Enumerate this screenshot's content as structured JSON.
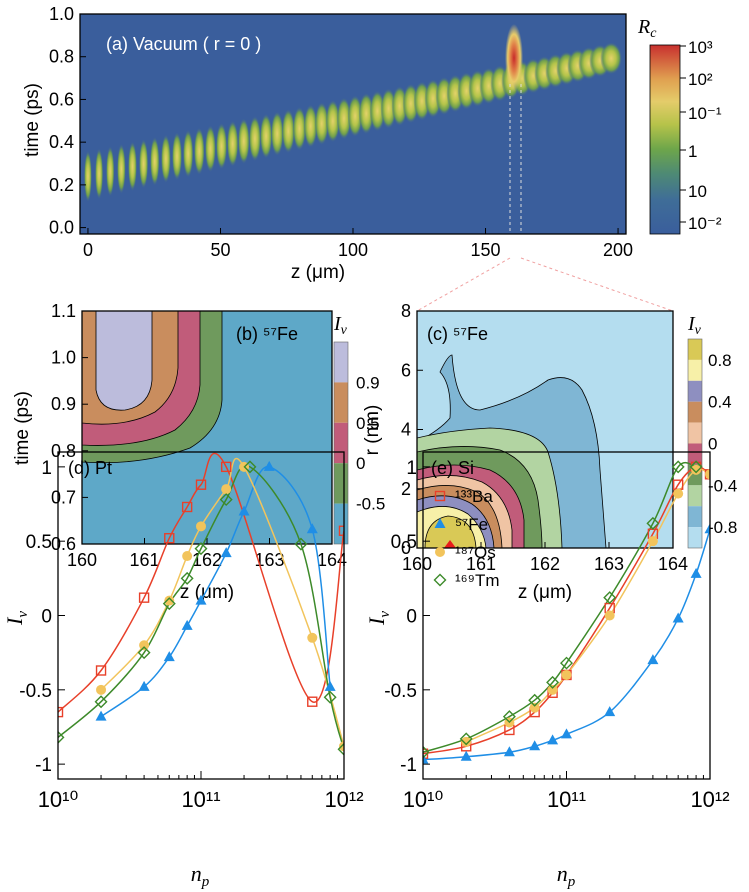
{
  "chart_data": [
    {
      "id": "a",
      "type": "heatmap",
      "annotation": "(a) Vacuum ( r = 0 )",
      "xlabel": "z (μm)",
      "ylabel": "time (ps)",
      "xlim": [
        -3,
        203
      ],
      "ylim": [
        -0.03,
        1.0
      ],
      "xticks": [
        0,
        50,
        100,
        150,
        200
      ],
      "yticks": [
        0.0,
        0.2,
        0.4,
        0.6,
        0.8,
        1.0
      ],
      "ytick_labels": [
        "0.0",
        "0.2",
        "0.4",
        "0.6",
        "0.8",
        "1.0"
      ],
      "colorbar_title": "R_c",
      "colorbar_labels": [
        "10³",
        "10²",
        "10⁻¹",
        "1",
        "10",
        "10⁻²"
      ],
      "peak": {
        "z": 160,
        "time": 0.8
      },
      "dashed_lines_z": [
        160,
        164
      ],
      "colors": [
        "#3a5e9c",
        "#3a5fa0",
        "#4c7f8c",
        "#5e9a4c",
        "#9ab640",
        "#d8c84c",
        "#e8d270",
        "#d94a3a"
      ]
    },
    {
      "id": "b",
      "type": "contour",
      "annotation": "(b) ⁵⁷Fe",
      "xlabel": "z (μm)",
      "ylabel": "time (ps)",
      "xlim": [
        160,
        164
      ],
      "ylim": [
        0.6,
        1.1
      ],
      "xticks": [
        160,
        161,
        162,
        163,
        164
      ],
      "yticks": [
        0.6,
        0.7,
        0.8,
        0.9,
        1.0,
        1.1
      ],
      "ytick_labels": [
        "0.6",
        "0.7",
        "0.8",
        "0.9",
        "1.0",
        "1.1"
      ],
      "colorbar_title": "I_v",
      "colorbar_levels": [
        "0.9",
        "0.5",
        "0",
        "-0.5"
      ],
      "level_colors": [
        "#bcbcdc",
        "#c98d5e",
        "#c15c7a",
        "#6f9a5d",
        "#5ea8c8"
      ]
    },
    {
      "id": "c",
      "type": "contour",
      "annotation": "(c) ⁵⁷Fe",
      "xlabel": "z (μm)",
      "ylabel": "r (nm)",
      "xlim": [
        160,
        164
      ],
      "ylim": [
        0,
        8
      ],
      "xticks": [
        160,
        161,
        162,
        163,
        164
      ],
      "yticks": [
        0,
        2,
        4,
        6,
        8
      ],
      "colorbar_title": "I_v",
      "colorbar_levels": [
        "0.8",
        "0.4",
        "0",
        "-0.4",
        "-0.8"
      ],
      "level_colors": [
        "#d9c956",
        "#f7f0a8",
        "#8e8fc0",
        "#c98d5e",
        "#f0c4a4",
        "#c15c7a",
        "#6f9a5d",
        "#b2d4a2",
        "#7fb6d4",
        "#b4ddef"
      ],
      "marker": {
        "z": 160.67,
        "r": 0.1
      }
    },
    {
      "id": "d",
      "type": "line",
      "annotation": "(d) Pt",
      "xlabel": "n_p",
      "ylabel": "I_v",
      "xscale": "log",
      "xlim": [
        10000000000.0,
        1000000000000.0
      ],
      "ylim": [
        -1.1,
        1.1
      ],
      "xtick_labels": [
        "10¹⁰",
        "10¹¹",
        "10¹²"
      ],
      "ytick_labels": [
        "1",
        "0.5",
        "0",
        "-0.5",
        "-1"
      ],
      "series": [
        {
          "name": "¹³³Ba",
          "color": "#e8402a",
          "marker": "square",
          "points": [
            [
              10000000000.0,
              -0.65
            ],
            [
              20000000000.0,
              -0.37
            ],
            [
              40000000000.0,
              0.12
            ],
            [
              60000000000.0,
              0.52
            ],
            [
              80000000000.0,
              0.73
            ],
            [
              100000000000.0,
              0.88
            ],
            [
              150000000000.0,
              1.0
            ],
            [
              600000000000.0,
              -0.58
            ],
            [
              1000000000000.0,
              0.57
            ]
          ]
        },
        {
          "name": "⁵⁷Fe",
          "color": "#1f8ee6",
          "marker": "triangle",
          "points": [
            [
              20000000000.0,
              -0.68
            ],
            [
              40000000000.0,
              -0.48
            ],
            [
              60000000000.0,
              -0.28
            ],
            [
              80000000000.0,
              -0.07
            ],
            [
              100000000000.0,
              0.1
            ],
            [
              150000000000.0,
              0.42
            ],
            [
              200000000000.0,
              0.7
            ],
            [
              300000000000.0,
              1.0
            ],
            [
              600000000000.0,
              0.58
            ],
            [
              800000000000.0,
              -0.48
            ]
          ]
        },
        {
          "name": "¹⁸⁷Os",
          "color": "#f2c45c",
          "marker": "circle",
          "points": [
            [
              20000000000.0,
              -0.5
            ],
            [
              40000000000.0,
              -0.2
            ],
            [
              60000000000.0,
              0.1
            ],
            [
              80000000000.0,
              0.4
            ],
            [
              100000000000.0,
              0.6
            ],
            [
              150000000000.0,
              0.85
            ],
            [
              200000000000.0,
              1.0
            ],
            [
              600000000000.0,
              -0.15
            ],
            [
              1000000000000.0,
              -0.88
            ]
          ]
        },
        {
          "name": "¹⁶⁹Tm",
          "color": "#3d8a2a",
          "marker": "diamond",
          "points": [
            [
              10000000000.0,
              -0.82
            ],
            [
              20000000000.0,
              -0.58
            ],
            [
              40000000000.0,
              -0.25
            ],
            [
              60000000000.0,
              0.08
            ],
            [
              80000000000.0,
              0.25
            ],
            [
              100000000000.0,
              0.45
            ],
            [
              150000000000.0,
              0.78
            ],
            [
              220000000000.0,
              1.0
            ],
            [
              500000000000.0,
              0.48
            ],
            [
              800000000000.0,
              -0.55
            ],
            [
              1000000000000.0,
              -0.9
            ]
          ]
        }
      ]
    },
    {
      "id": "e",
      "type": "line",
      "annotation": "(e) Si",
      "xlabel": "n_p",
      "ylabel": "I_v",
      "xscale": "log",
      "xlim": [
        10000000000.0,
        1000000000000.0
      ],
      "ylim": [
        -1.1,
        1.1
      ],
      "xtick_labels": [
        "10¹⁰",
        "10¹¹",
        "10¹²"
      ],
      "ytick_labels": [
        "1",
        "0.5",
        "0",
        "-0.5",
        "-1"
      ],
      "legend": [
        "¹³³Ba",
        "⁵⁷Fe",
        "¹⁸⁷Os",
        "¹⁶⁹Tm"
      ],
      "series": [
        {
          "name": "¹³³Ba",
          "color": "#e8402a",
          "marker": "square",
          "points": [
            [
              10000000000.0,
              -0.93
            ],
            [
              20000000000.0,
              -0.88
            ],
            [
              40000000000.0,
              -0.77
            ],
            [
              60000000000.0,
              -0.65
            ],
            [
              80000000000.0,
              -0.52
            ],
            [
              100000000000.0,
              -0.4
            ],
            [
              200000000000.0,
              0.05
            ],
            [
              400000000000.0,
              0.55
            ],
            [
              600000000000.0,
              0.88
            ],
            [
              800000000000.0,
              1.0
            ],
            [
              1000000000000.0,
              0.95
            ]
          ]
        },
        {
          "name": "⁵⁷Fe",
          "color": "#1f8ee6",
          "marker": "triangle",
          "points": [
            [
              10000000000.0,
              -0.97
            ],
            [
              20000000000.0,
              -0.95
            ],
            [
              40000000000.0,
              -0.92
            ],
            [
              60000000000.0,
              -0.88
            ],
            [
              80000000000.0,
              -0.84
            ],
            [
              100000000000.0,
              -0.8
            ],
            [
              200000000000.0,
              -0.65
            ],
            [
              400000000000.0,
              -0.3
            ],
            [
              600000000000.0,
              -0.02
            ],
            [
              800000000000.0,
              0.28
            ],
            [
              1000000000000.0,
              0.58
            ]
          ]
        },
        {
          "name": "¹⁸⁷Os",
          "color": "#f2c45c",
          "marker": "circle",
          "points": [
            [
              20000000000.0,
              -0.85
            ],
            [
              40000000000.0,
              -0.72
            ],
            [
              60000000000.0,
              -0.62
            ],
            [
              80000000000.0,
              -0.5
            ],
            [
              100000000000.0,
              -0.4
            ],
            [
              200000000000.0,
              0.0
            ],
            [
              400000000000.0,
              0.5
            ],
            [
              600000000000.0,
              0.82
            ],
            [
              800000000000.0,
              0.98
            ],
            [
              1000000000000.0,
              0.95
            ]
          ]
        },
        {
          "name": "¹⁶⁹Tm",
          "color": "#3d8a2a",
          "marker": "diamond",
          "points": [
            [
              10000000000.0,
              -0.92
            ],
            [
              20000000000.0,
              -0.83
            ],
            [
              40000000000.0,
              -0.68
            ],
            [
              60000000000.0,
              -0.57
            ],
            [
              80000000000.0,
              -0.45
            ],
            [
              100000000000.0,
              -0.32
            ],
            [
              200000000000.0,
              0.12
            ],
            [
              400000000000.0,
              0.62
            ],
            [
              600000000000.0,
              1.0
            ],
            [
              800000000000.0,
              1.0
            ]
          ]
        }
      ]
    }
  ]
}
